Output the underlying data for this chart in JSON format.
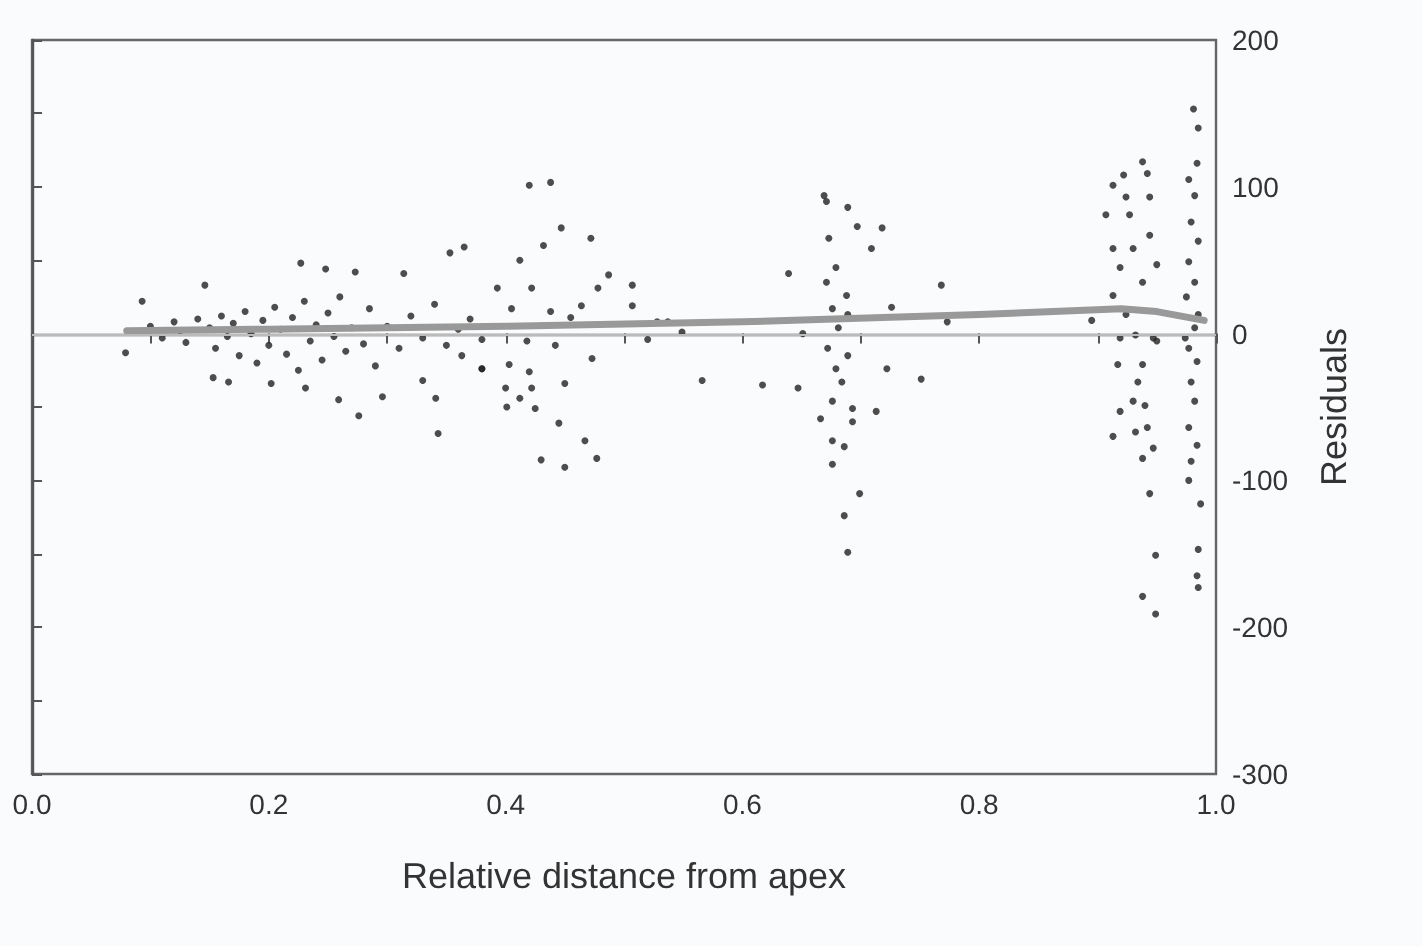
{
  "chart_data": {
    "type": "scatter",
    "xlabel": "Relative distance from apex",
    "ylabel": "Residuals",
    "xlim": [
      0,
      1
    ],
    "ylim": [
      -300,
      200
    ],
    "xticks": [
      {
        "value": 0,
        "label": "0.0"
      },
      {
        "value": 0.1,
        "label": null
      },
      0.2,
      {
        "value": 0.3,
        "label": null
      },
      0.4,
      {
        "value": 0.5,
        "label": null
      },
      0.6,
      {
        "value": 0.7,
        "label": null
      },
      0.8,
      {
        "value": 0.9,
        "label": null
      },
      {
        "value": 1,
        "label": "1.0"
      }
    ],
    "yticks": [
      -300,
      {
        "value": -250,
        "label": null
      },
      -200,
      {
        "value": -150,
        "label": null
      },
      -100,
      {
        "value": -50,
        "label": null
      },
      0,
      {
        "value": 50,
        "label": null
      },
      100,
      {
        "value": 150,
        "label": null
      },
      200
    ],
    "grid": false,
    "ref_lines": [
      {
        "axis": "y",
        "value": 0,
        "color": "#bbbbbb"
      }
    ],
    "series": [
      {
        "color": "#222222",
        "marker": "circle",
        "x": [
          0.079,
          0.093,
          0.146,
          0.227,
          0.248,
          0.273,
          0.314,
          0.353,
          0.365,
          0.153,
          0.166,
          0.202,
          0.231,
          0.259,
          0.276,
          0.296,
          0.33,
          0.341,
          0.343,
          0.38,
          0.363,
          0.1,
          0.11,
          0.12,
          0.125,
          0.13,
          0.14,
          0.15,
          0.155,
          0.16,
          0.165,
          0.17,
          0.175,
          0.18,
          0.185,
          0.19,
          0.195,
          0.2,
          0.205,
          0.21,
          0.215,
          0.22,
          0.225,
          0.23,
          0.235,
          0.24,
          0.245,
          0.25,
          0.255,
          0.26,
          0.265,
          0.27,
          0.28,
          0.285,
          0.29,
          0.3,
          0.31,
          0.32,
          0.33,
          0.34,
          0.35,
          0.36,
          0.37,
          0.38,
          0.42,
          0.438,
          0.447,
          0.472,
          0.412,
          0.432,
          0.487,
          0.507,
          0.393,
          0.405,
          0.422,
          0.438,
          0.464,
          0.478,
          0.455,
          0.418,
          0.442,
          0.473,
          0.403,
          0.38,
          0.42,
          0.45,
          0.4,
          0.422,
          0.412,
          0.401,
          0.425,
          0.445,
          0.467,
          0.477,
          0.43,
          0.45,
          0.52,
          0.528,
          0.537,
          0.549,
          0.566,
          0.507,
          0.639,
          0.617,
          0.647,
          0.651,
          0.669,
          0.671,
          0.689,
          0.697,
          0.673,
          0.679,
          0.671,
          0.688,
          0.676,
          0.689,
          0.681,
          0.672,
          0.689,
          0.679,
          0.684,
          0.676,
          0.693,
          0.666,
          0.693,
          0.686,
          0.676,
          0.676,
          0.699,
          0.686,
          0.689,
          0.709,
          0.718,
          0.726,
          0.722,
          0.713,
          0.751,
          0.768,
          0.773,
          0.895,
          0.913,
          0.922,
          0.938,
          0.942,
          0.924,
          0.907,
          0.927,
          0.944,
          0.913,
          0.93,
          0.919,
          0.938,
          0.944,
          0.95,
          0.913,
          0.924,
          0.932,
          0.919,
          0.947,
          0.917,
          0.938,
          0.934,
          0.93,
          0.94,
          0.919,
          0.942,
          0.913,
          0.932,
          0.947,
          0.938,
          0.944,
          0.949,
          0.938,
          0.949,
          0.95,
          0.981,
          0.985,
          0.984,
          0.977,
          0.982,
          0.979,
          0.985,
          0.977,
          0.982,
          0.975,
          0.985,
          0.982,
          0.977,
          0.984,
          0.979,
          0.982,
          0.977,
          0.984,
          0.979,
          0.977,
          0.987,
          0.985,
          0.984,
          0.985,
          0.974
        ],
        "values": [
          -13,
          22,
          33,
          48,
          44,
          42,
          41,
          55,
          59,
          -30,
          -33,
          -34,
          -37,
          -45,
          -56,
          -43,
          -32,
          -44,
          -68,
          -24,
          -15,
          5,
          -3,
          8,
          2,
          -6,
          10,
          4,
          -10,
          12,
          -2,
          7,
          -15,
          15,
          0,
          -20,
          9,
          -8,
          18,
          3,
          -14,
          11,
          -25,
          22,
          -5,
          6,
          -18,
          14,
          -2,
          25,
          -12,
          4,
          -7,
          17,
          -22,
          5,
          -10,
          12,
          -3,
          20,
          -8,
          3,
          10,
          -4,
          101,
          103,
          72,
          65,
          50,
          60,
          40,
          33,
          31,
          17,
          31,
          15,
          19,
          31,
          11,
          -5,
          -8,
          -17,
          -21,
          -24,
          -26,
          -34,
          -37,
          -37,
          -44,
          -50,
          -51,
          -61,
          -73,
          -85,
          -86,
          -91,
          -4,
          8,
          8,
          1,
          -32,
          19,
          41,
          -35,
          -37,
          0,
          94,
          90,
          86,
          73,
          65,
          45,
          35,
          26,
          17,
          13,
          4,
          -10,
          -15,
          -24,
          -33,
          -46,
          -51,
          -58,
          -60,
          -77,
          -73,
          -89,
          -109,
          -124,
          -149,
          58,
          72,
          18,
          -24,
          -53,
          -31,
          33,
          8,
          9,
          101,
          108,
          117,
          109,
          93,
          81,
          81,
          93,
          58,
          58,
          45,
          35,
          67,
          47,
          26,
          13,
          -1,
          -3,
          -3,
          -21,
          -21,
          -33,
          -46,
          -49,
          -53,
          -64,
          -70,
          -67,
          -78,
          -85,
          -109,
          -151,
          -179,
          -191,
          -5,
          153,
          140,
          116,
          105,
          94,
          76,
          63,
          49,
          35,
          25,
          13,
          4,
          -10,
          -19,
          -33,
          -46,
          -64,
          -76,
          -87,
          -100,
          -116,
          -147,
          -165,
          -173,
          -3
        ]
      },
      {
        "type": "line",
        "color": "#999999",
        "x": [
          0.08,
          0.2,
          0.4,
          0.6,
          0.8,
          0.92,
          0.95,
          0.99
        ],
        "values": [
          2,
          3,
          5,
          8,
          13,
          17,
          15,
          9
        ]
      }
    ]
  }
}
